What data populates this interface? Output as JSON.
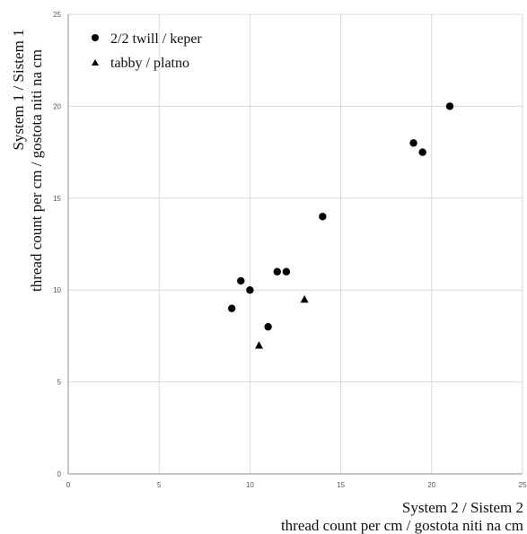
{
  "chart_data": {
    "type": "scatter",
    "title": "",
    "xlabel": [
      "System 2 / Sistem 2",
      "thread count per cm / gostota niti na cm"
    ],
    "ylabel": [
      "System 1 / Sistem 1",
      "thread count per cm / gostota niti na cm"
    ],
    "xlim": [
      0,
      25
    ],
    "ylim": [
      0,
      25
    ],
    "xticks": [
      "0",
      "5",
      "10",
      "15",
      "20",
      "25"
    ],
    "yticks": [
      "0",
      "5",
      "10",
      "15",
      "20",
      "25"
    ],
    "grid": true,
    "legend_position": "top-left",
    "series": [
      {
        "name": "2/2 twill / keper",
        "marker": "circle",
        "color": "#000000",
        "points": [
          {
            "x": 9,
            "y": 9
          },
          {
            "x": 9.5,
            "y": 10.5
          },
          {
            "x": 10,
            "y": 10
          },
          {
            "x": 11,
            "y": 8
          },
          {
            "x": 11.5,
            "y": 11
          },
          {
            "x": 12,
            "y": 11
          },
          {
            "x": 14,
            "y": 14
          },
          {
            "x": 19,
            "y": 18
          },
          {
            "x": 19.5,
            "y": 17.5
          },
          {
            "x": 21,
            "y": 20
          }
        ]
      },
      {
        "name": "tabby / platno",
        "marker": "triangle",
        "color": "#000000",
        "points": [
          {
            "x": 10.5,
            "y": 7
          },
          {
            "x": 13,
            "y": 9.5
          }
        ]
      }
    ]
  }
}
